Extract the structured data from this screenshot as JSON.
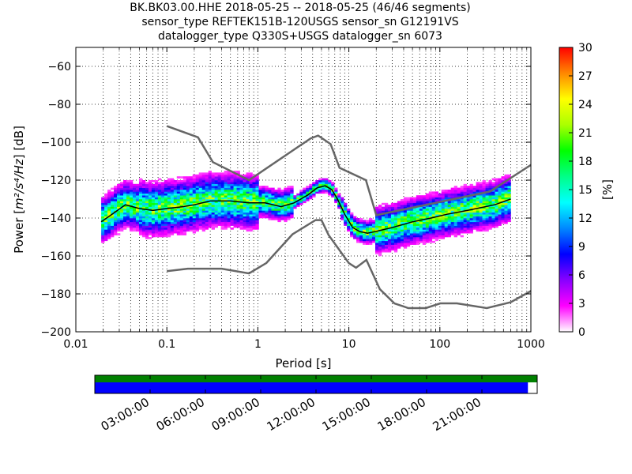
{
  "title_lines": [
    "BK.BK03.00.HHE   2018-05-25 -- 2018-05-25  (46/46 segments)",
    "sensor_type REFTEK151B-120USGS sensor_sn G12191VS",
    "datalogger_type Q330S+USGS datalogger_sn 6073"
  ],
  "chart_data": {
    "type": "heatmap",
    "title": "BK.BK03.00.HHE   2018-05-25 -- 2018-05-25  (46/46 segments)",
    "xlabel": "Period [s]",
    "ylabel_text": "Power [",
    "ylabel_units": "m²/s⁴/Hz",
    "ylabel_db": "] [dB]",
    "x_scale": "log",
    "xlim": [
      0.01,
      1000
    ],
    "ylim": [
      -200,
      -50
    ],
    "x_ticks": [
      0.01,
      0.1,
      1,
      10,
      100,
      1000
    ],
    "x_tick_labels": [
      "0.01",
      "0.1",
      "1",
      "10",
      "100",
      "1000"
    ],
    "y_ticks": [
      -200,
      -180,
      -160,
      -140,
      -120,
      -100,
      -80,
      -60
    ],
    "y_tick_labels": [
      "−200",
      "−180",
      "−160",
      "−140",
      "−120",
      "−100",
      "−80",
      "−60"
    ],
    "grid": true,
    "colorbar": {
      "label": "[%]",
      "range": [
        0,
        30
      ],
      "ticks": [
        0,
        3,
        6,
        9,
        12,
        15,
        18,
        21,
        24,
        27,
        30
      ],
      "colors": [
        "#ffffff",
        "#ff00ff",
        "#8800ff",
        "#0000ff",
        "#0088ff",
        "#00ffff",
        "#00ff88",
        "#00ff00",
        "#aaff00",
        "#ffff00",
        "#ff8800",
        "#ff0000"
      ]
    },
    "series": [
      {
        "role": "mode_line",
        "x": [
          0.019,
          0.025,
          0.035,
          0.05,
          0.07,
          0.1,
          0.15,
          0.2,
          0.3,
          0.5,
          0.8,
          1.2,
          1.8,
          2.5,
          3.5,
          4.5,
          5.5,
          6.5,
          7.5,
          9,
          11,
          13,
          16,
          20,
          30,
          50,
          80,
          120,
          200,
          400,
          600
        ],
        "y": [
          -142,
          -138,
          -133,
          -135,
          -136,
          -135,
          -134,
          -133,
          -131,
          -131,
          -132,
          -132,
          -134,
          -132,
          -128,
          -124,
          -123,
          -125,
          -130,
          -138,
          -145,
          -147,
          -148,
          -147,
          -145,
          -142,
          -140,
          -138,
          -136,
          -133,
          -130
        ]
      },
      {
        "role": "nhnm",
        "x": [
          0.1,
          0.22,
          0.32,
          0.8,
          3.8,
          4.6,
          6.3,
          7.9,
          15.4,
          20,
          354.8,
          1000
        ],
        "y": [
          -91.5,
          -97.4,
          -110.5,
          -120,
          -98,
          -96.5,
          -101,
          -113.5,
          -120,
          -138.5,
          -126,
          -112
        ]
      },
      {
        "role": "nlnm",
        "x": [
          0.1,
          0.17,
          0.4,
          0.8,
          1.24,
          2.4,
          4.3,
          5,
          6,
          10,
          12,
          15.6,
          21.9,
          31.6,
          45,
          70,
          101,
          154,
          328,
          600,
          1000
        ],
        "y": [
          -168,
          -166.7,
          -166.7,
          -169.2,
          -163.7,
          -148.6,
          -141.1,
          -141.1,
          -149,
          -163.8,
          -166.2,
          -162.1,
          -177.5,
          -185,
          -187.5,
          -187.5,
          -185,
          -185,
          -187.5,
          -184.4,
          -178.5
        ]
      }
    ]
  },
  "time_axis": {
    "tick_labels": [
      "03:00:00",
      "06:00:00",
      "09:00:00",
      "12:00:00",
      "15:00:00",
      "18:00:00",
      "21:00:00"
    ],
    "tick_hours": [
      3,
      6,
      9,
      12,
      15,
      18,
      21
    ],
    "span_hours": 24,
    "data_fraction": 1.0,
    "processed_fraction": 0.979,
    "data_color": "#008000",
    "processed_color": "#0000ff"
  }
}
